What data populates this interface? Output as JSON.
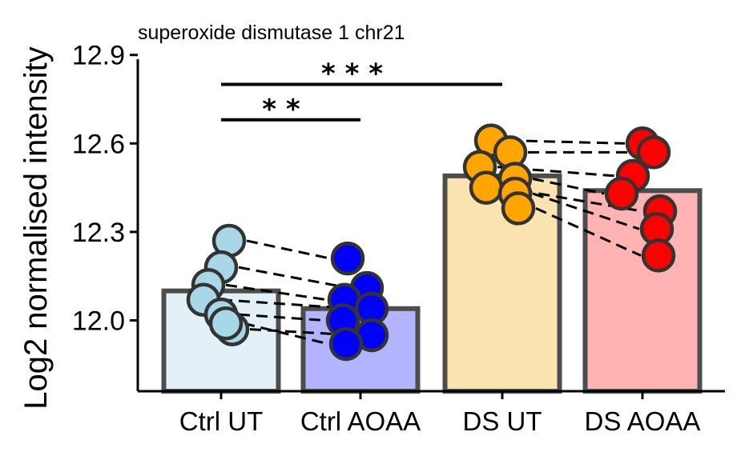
{
  "chart_data": {
    "type": "bar",
    "title": "superoxide dismutase 1 chr21",
    "xlabel": "",
    "ylabel": "Log2 normalised intensity",
    "ylim": [
      11.76,
      12.91
    ],
    "yticks": [
      12.0,
      12.3,
      12.6,
      12.9
    ],
    "ytick_labels": [
      "12.0",
      "12.3",
      "12.6",
      "12.9"
    ],
    "categories": [
      "Ctrl UT",
      "Ctrl AOAA",
      "DS UT",
      "DS AOAA"
    ],
    "values": [
      12.1,
      12.04,
      12.49,
      12.44
    ],
    "bar_fills": [
      "#e3f0f7",
      "#b3b3ff",
      "#fbe3b0",
      "#ffb3b3"
    ],
    "point_colors": [
      "#a8d8e8",
      "#0000ff",
      "#ffa500",
      "#ff0000"
    ],
    "bar_edge_color": "#4d4d4d",
    "points": [
      [
        12.27,
        12.18,
        12.12,
        12.07,
        12.02,
        11.97,
        11.99
      ],
      [
        12.21,
        12.11,
        12.07,
        12.04,
        12.0,
        11.95,
        11.92
      ],
      [
        12.61,
        12.57,
        12.52,
        12.48,
        12.45,
        12.43,
        12.38
      ],
      [
        12.6,
        12.57,
        12.49,
        12.43,
        12.37,
        12.31,
        12.22
      ]
    ],
    "significance": [
      {
        "from": 0,
        "to": 1,
        "label": "* *",
        "y": 12.68
      },
      {
        "from": 0,
        "to": 2,
        "label": "* * *",
        "y": 12.8
      }
    ],
    "grid": false,
    "legend": "none"
  }
}
